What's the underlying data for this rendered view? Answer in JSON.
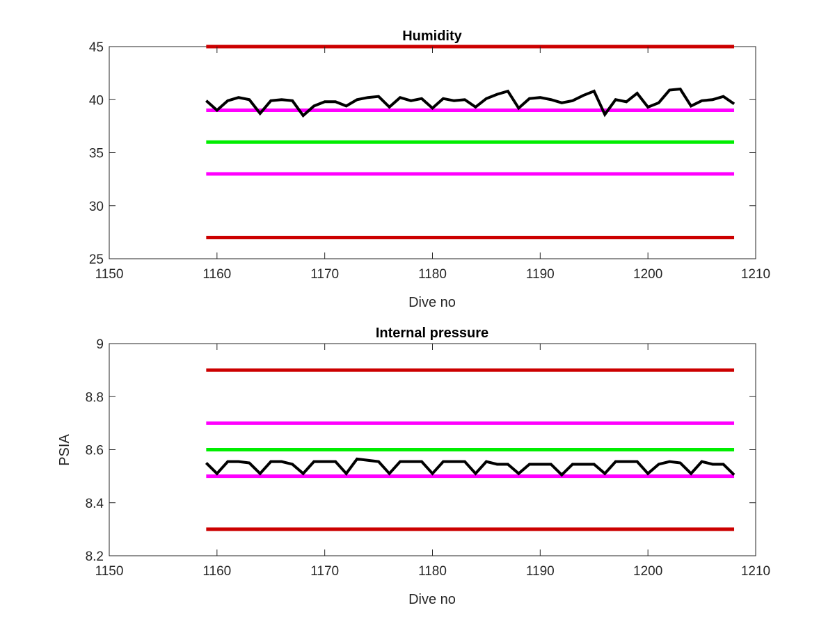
{
  "chart_data": [
    {
      "type": "line",
      "title": "Humidity",
      "xlabel": "Dive no",
      "ylabel": "",
      "xlim": [
        1150,
        1210
      ],
      "ylim": [
        25,
        45
      ],
      "xticks": [
        "1150",
        "1160",
        "1170",
        "1180",
        "1190",
        "1200",
        "1210"
      ],
      "yticks": [
        "25",
        "30",
        "35",
        "40",
        "45"
      ],
      "grid": false,
      "reference_lines": [
        {
          "y": 45,
          "x_range": [
            1159,
            1208
          ],
          "color": "#cc0000"
        },
        {
          "y": 39,
          "x_range": [
            1159,
            1208
          ],
          "color": "#ff00ff"
        },
        {
          "y": 36,
          "x_range": [
            1159,
            1208
          ],
          "color": "#00ee00"
        },
        {
          "y": 33,
          "x_range": [
            1159,
            1208
          ],
          "color": "#ff00ff"
        },
        {
          "y": 27,
          "x_range": [
            1159,
            1208
          ],
          "color": "#cc0000"
        }
      ],
      "series": [
        {
          "color": "#000000",
          "x": [
            1159,
            1160,
            1161,
            1162,
            1163,
            1164,
            1165,
            1166,
            1167,
            1168,
            1169,
            1170,
            1171,
            1172,
            1173,
            1174,
            1175,
            1176,
            1177,
            1178,
            1179,
            1180,
            1181,
            1182,
            1183,
            1184,
            1185,
            1186,
            1187,
            1188,
            1189,
            1190,
            1191,
            1192,
            1193,
            1194,
            1195,
            1196,
            1197,
            1198,
            1199,
            1200,
            1201,
            1202,
            1203,
            1204,
            1205,
            1206,
            1207,
            1208
          ],
          "y": [
            39.9,
            39.0,
            39.9,
            40.2,
            40.0,
            38.7,
            39.9,
            40.0,
            39.9,
            38.5,
            39.4,
            39.8,
            39.8,
            39.4,
            40.0,
            40.2,
            40.3,
            39.3,
            40.2,
            39.9,
            40.1,
            39.2,
            40.1,
            39.9,
            40.0,
            39.3,
            40.1,
            40.5,
            40.8,
            39.2,
            40.1,
            40.2,
            40.0,
            39.7,
            39.9,
            40.4,
            40.8,
            38.6,
            40.0,
            39.8,
            40.6,
            39.3,
            39.7,
            40.9,
            41.0,
            39.4,
            39.9,
            40.0,
            40.3,
            39.6
          ]
        }
      ]
    },
    {
      "type": "line",
      "title": "Internal pressure",
      "xlabel": "Dive no",
      "ylabel": "PSIA",
      "xlim": [
        1150,
        1210
      ],
      "ylim": [
        8.2,
        9.0
      ],
      "xticks": [
        "1150",
        "1160",
        "1170",
        "1180",
        "1190",
        "1200",
        "1210"
      ],
      "yticks": [
        "8.2",
        "8.4",
        "8.6",
        "8.8",
        "9"
      ],
      "grid": false,
      "reference_lines": [
        {
          "y": 8.9,
          "x_range": [
            1159,
            1208
          ],
          "color": "#cc0000"
        },
        {
          "y": 8.7,
          "x_range": [
            1159,
            1208
          ],
          "color": "#ff00ff"
        },
        {
          "y": 8.6,
          "x_range": [
            1159,
            1208
          ],
          "color": "#00ee00"
        },
        {
          "y": 8.5,
          "x_range": [
            1159,
            1208
          ],
          "color": "#ff00ff"
        },
        {
          "y": 8.3,
          "x_range": [
            1159,
            1208
          ],
          "color": "#cc0000"
        }
      ],
      "series": [
        {
          "color": "#000000",
          "x": [
            1159,
            1160,
            1161,
            1162,
            1163,
            1164,
            1165,
            1166,
            1167,
            1168,
            1169,
            1170,
            1171,
            1172,
            1173,
            1174,
            1175,
            1176,
            1177,
            1178,
            1179,
            1180,
            1181,
            1182,
            1183,
            1184,
            1185,
            1186,
            1187,
            1188,
            1189,
            1190,
            1191,
            1192,
            1193,
            1194,
            1195,
            1196,
            1197,
            1198,
            1199,
            1200,
            1201,
            1202,
            1203,
            1204,
            1205,
            1206,
            1207,
            1208
          ],
          "y": [
            8.55,
            8.51,
            8.555,
            8.555,
            8.55,
            8.51,
            8.555,
            8.555,
            8.545,
            8.51,
            8.555,
            8.555,
            8.555,
            8.51,
            8.565,
            8.56,
            8.555,
            8.51,
            8.555,
            8.555,
            8.555,
            8.51,
            8.555,
            8.555,
            8.555,
            8.51,
            8.555,
            8.545,
            8.545,
            8.51,
            8.545,
            8.545,
            8.545,
            8.505,
            8.545,
            8.545,
            8.545,
            8.51,
            8.555,
            8.555,
            8.555,
            8.51,
            8.545,
            8.555,
            8.55,
            8.51,
            8.555,
            8.545,
            8.545,
            8.505
          ]
        }
      ]
    }
  ]
}
